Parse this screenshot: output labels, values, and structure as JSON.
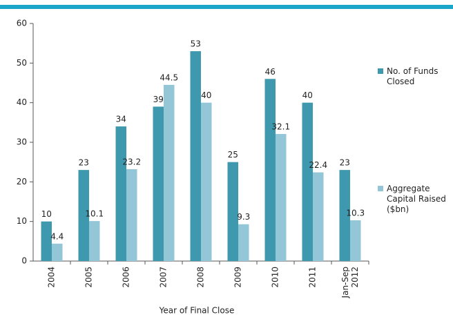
{
  "chart_data": {
    "type": "bar",
    "categories": [
      "2004",
      "2005",
      "2006",
      "2007",
      "2008",
      "2009",
      "2010",
      "2011",
      "Jan-Sep 2012"
    ],
    "series": [
      {
        "name": "No. of Funds Closed",
        "color": "#3e98ae",
        "values": [
          10,
          23,
          34,
          39,
          53,
          25,
          46,
          40,
          23
        ]
      },
      {
        "name": "Aggregate Capital Raised ($bn)",
        "color": "#93c6d7",
        "values": [
          4.4,
          10.1,
          23.2,
          44.5,
          40,
          9.3,
          32.1,
          22.4,
          10.3
        ]
      }
    ],
    "xlabel": "Year of Final Close",
    "ylim": [
      0,
      60
    ],
    "yticks": [
      0,
      10,
      20,
      30,
      40,
      50,
      60
    ],
    "grid": false
  }
}
